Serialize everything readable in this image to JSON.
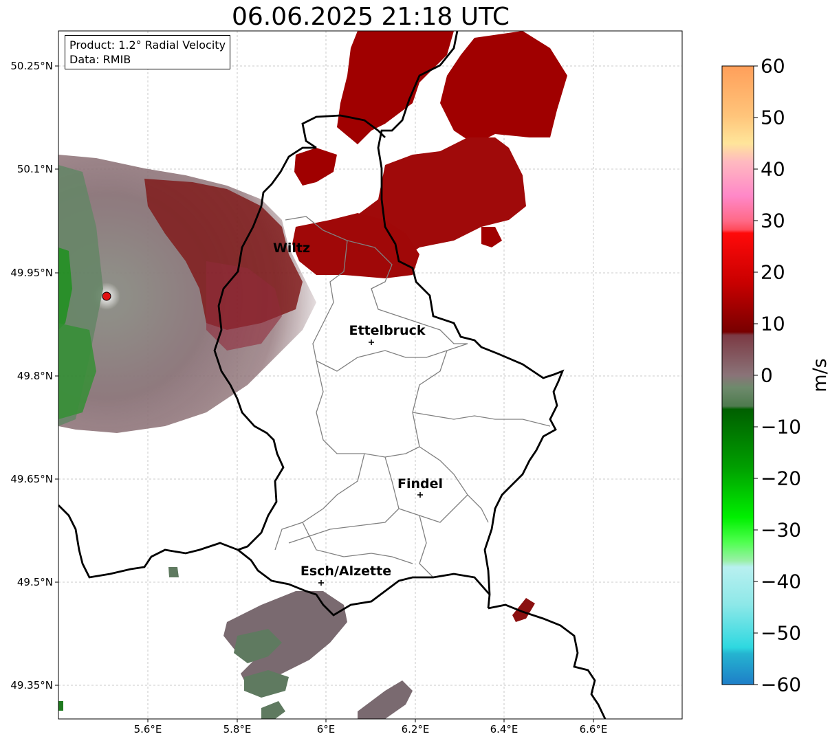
{
  "title": "06.06.2025 21:18 UTC",
  "info": {
    "product": "Product: 1.2° Radial Velocity",
    "data": "Data: RMIB"
  },
  "lat_labels": [
    "50.25°N",
    "50.1°N",
    "49.95°N",
    "49.8°N",
    "49.65°N",
    "49.5°N",
    "49.35°N"
  ],
  "lon_labels": [
    "5.6°E",
    "5.8°E",
    "6°E",
    "6.2°E",
    "6.4°E",
    "6.6°E"
  ],
  "cities": [
    {
      "name": "Wiltz",
      "id": "wiltz"
    },
    {
      "name": "Ettelbruck",
      "id": "ettelbruck"
    },
    {
      "name": "Findel",
      "id": "findel"
    },
    {
      "name": "Esch/Alzette",
      "id": "esch"
    }
  ],
  "colorbar": {
    "unit": "m/s",
    "ticks": [
      "60",
      "50",
      "40",
      "30",
      "20",
      "10",
      "0",
      "−10",
      "−20",
      "−30",
      "−40",
      "−50",
      "−60"
    ],
    "min": -60,
    "max": 60
  },
  "colors": {
    "inbound_strong": "#1f7a1f",
    "inbound_light": "#5f8060",
    "near_zero": "#8a7378",
    "outbound": "#8b0000",
    "outbound_strong": "#a00000",
    "radar_site": "#e01010"
  }
}
